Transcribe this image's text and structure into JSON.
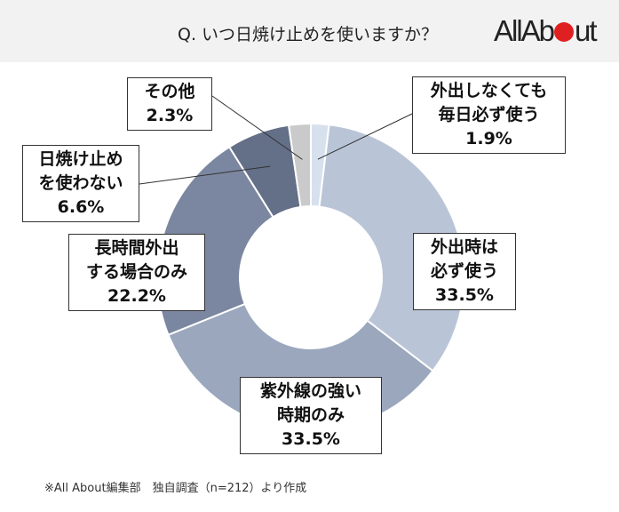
{
  "header": {
    "title": "Q. いつ日焼け止めを使いますか？",
    "logo": "All About"
  },
  "chart_data": {
    "type": "pie",
    "donut": true,
    "title": "Q. いつ日焼け止めを使いますか？",
    "categories": [
      "外出しなくても毎日必ず使う",
      "外出時は必ず使う",
      "紫外線の強い時期のみ",
      "長時間外出する場合のみ",
      "日焼け止めを使わない",
      "その他"
    ],
    "values": [
      1.9,
      33.5,
      33.5,
      22.2,
      6.6,
      2.3
    ],
    "colors": [
      "#d7e1ee",
      "#b9c5d7",
      "#9ba7bd",
      "#7b87a0",
      "#646f88",
      "#cacaca"
    ],
    "labels": [
      {
        "lines": [
          "外出しなくても",
          "毎日必ず使う"
        ],
        "pct": "1.9%"
      },
      {
        "lines": [
          "外出時は",
          "必ず使う"
        ],
        "pct": "33.5%"
      },
      {
        "lines": [
          "紫外線の強い",
          "時期のみ"
        ],
        "pct": "33.5%"
      },
      {
        "lines": [
          "長時間外出",
          "する場合のみ"
        ],
        "pct": "22.2%"
      },
      {
        "lines": [
          "日焼け止め",
          "を使わない"
        ],
        "pct": "6.6%"
      },
      {
        "lines": [
          "その他"
        ],
        "pct": "2.3%"
      }
    ]
  },
  "footnote": "※All About編集部　独自調査（n=212）より作成"
}
